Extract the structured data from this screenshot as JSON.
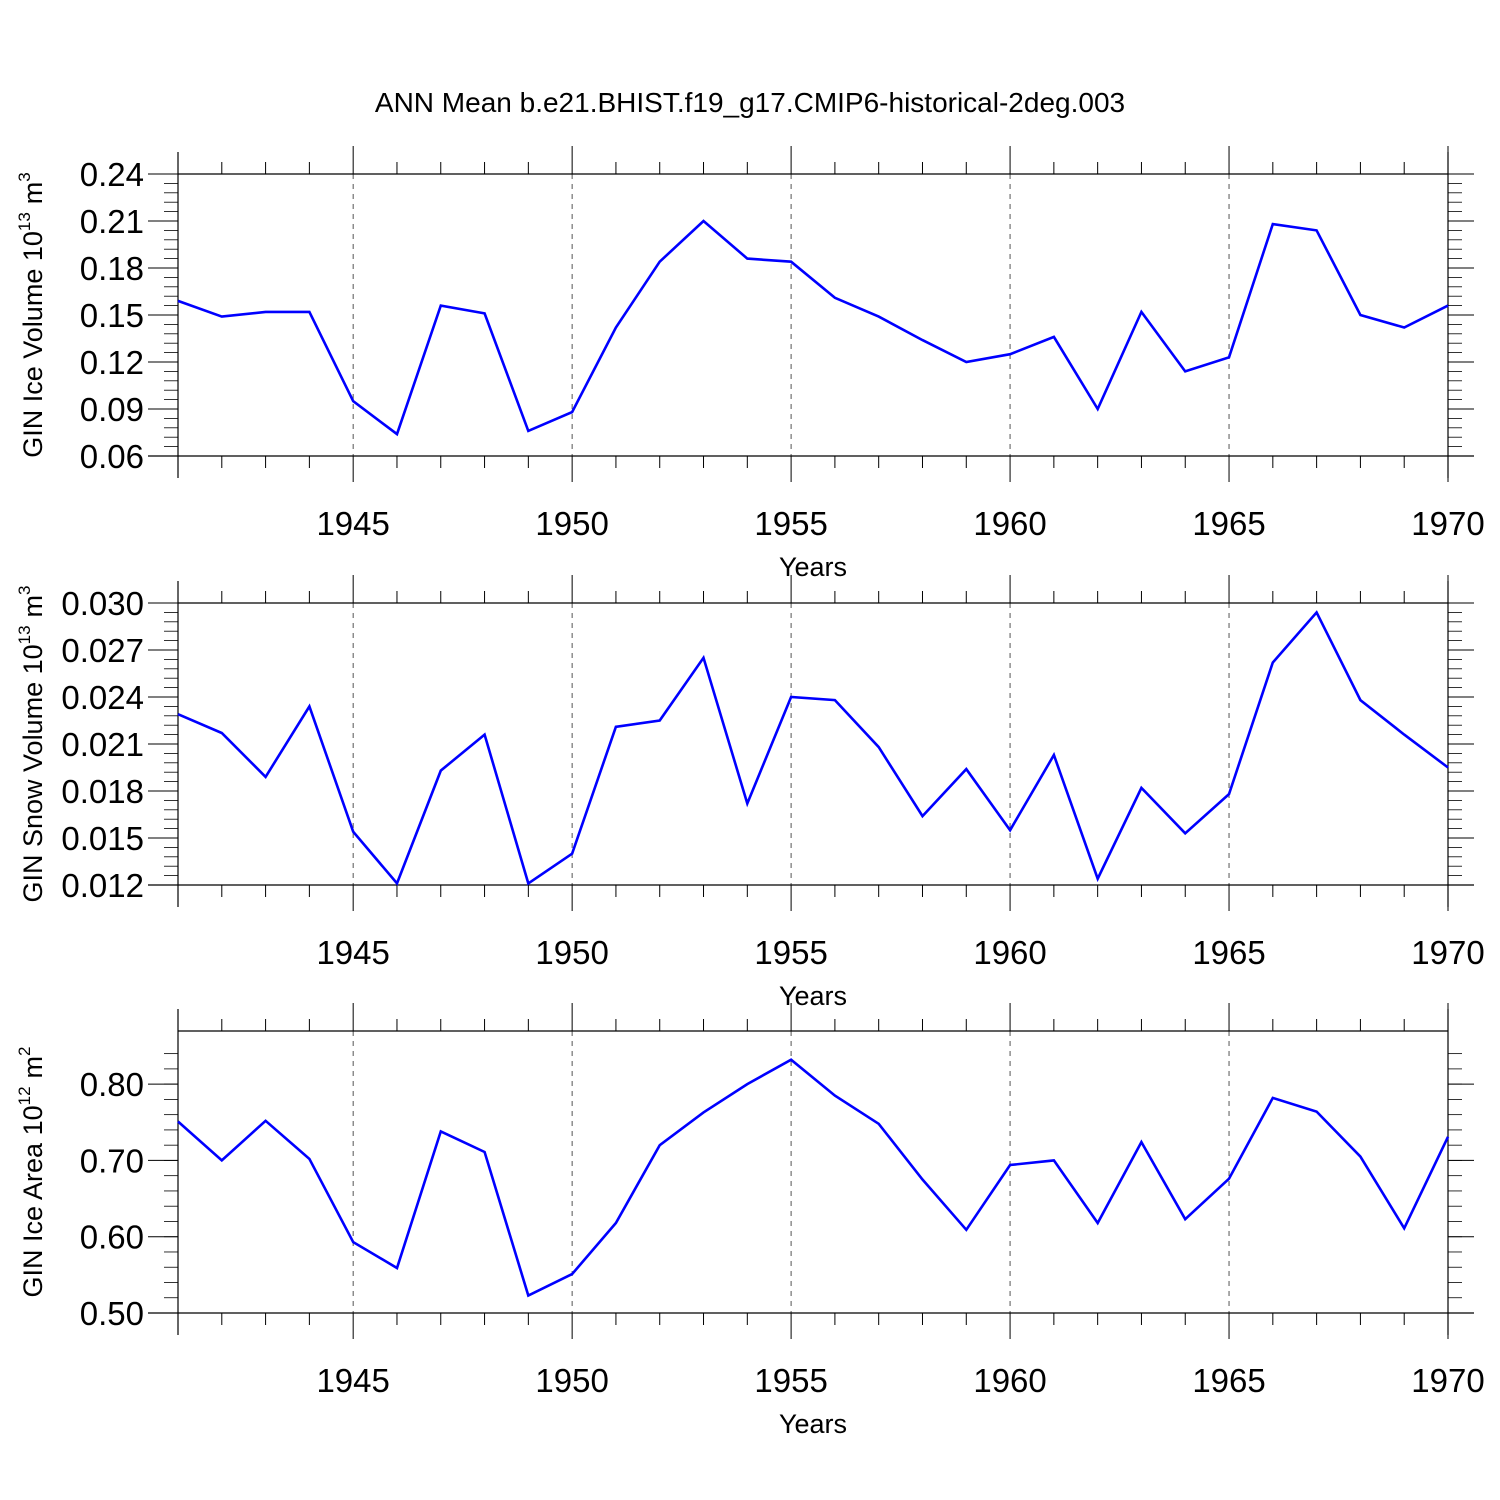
{
  "title": "ANN Mean b.e21.BHIST.f19_g17.CMIP6-historical-2deg.003",
  "chart_data": [
    {
      "type": "line",
      "ylabel": "GIN Ice Volume",
      "ylabel_unit": "10",
      "ylabel_exp": "13",
      "ylabel_suffix": "m",
      "ylabel_suffix_exp": "3",
      "xlabel": "Years",
      "xlim": [
        1941,
        1970
      ],
      "ylim": [
        0.06,
        0.24
      ],
      "yticks": [
        "0.06",
        "0.09",
        "0.12",
        "0.15",
        "0.18",
        "0.21",
        "0.24"
      ],
      "xticks": [
        "1945",
        "1950",
        "1955",
        "1960",
        "1965",
        "1970"
      ],
      "line_color": "#0000ff",
      "x": [
        1941,
        1942,
        1943,
        1944,
        1945,
        1946,
        1947,
        1948,
        1949,
        1950,
        1951,
        1952,
        1953,
        1954,
        1955,
        1956,
        1957,
        1958,
        1959,
        1960,
        1961,
        1962,
        1963,
        1964,
        1965,
        1966,
        1967,
        1968,
        1969,
        1970
      ],
      "values": [
        0.159,
        0.149,
        0.152,
        0.152,
        0.095,
        0.074,
        0.156,
        0.151,
        0.076,
        0.088,
        0.142,
        0.184,
        0.21,
        0.186,
        0.184,
        0.161,
        0.149,
        0.134,
        0.12,
        0.125,
        0.136,
        0.09,
        0.152,
        0.114,
        0.123,
        0.208,
        0.204,
        0.15,
        0.142,
        0.156
      ]
    },
    {
      "type": "line",
      "ylabel": "GIN Snow Volume",
      "ylabel_unit": "10",
      "ylabel_exp": "13",
      "ylabel_suffix": "m",
      "ylabel_suffix_exp": "3",
      "xlabel": "Years",
      "xlim": [
        1941,
        1970
      ],
      "ylim": [
        0.012,
        0.03
      ],
      "yticks": [
        "0.012",
        "0.015",
        "0.018",
        "0.021",
        "0.024",
        "0.027",
        "0.030"
      ],
      "xticks": [
        "1945",
        "1950",
        "1955",
        "1960",
        "1965",
        "1970"
      ],
      "line_color": "#0000ff",
      "x": [
        1941,
        1942,
        1943,
        1944,
        1945,
        1946,
        1947,
        1948,
        1949,
        1950,
        1951,
        1952,
        1953,
        1954,
        1955,
        1956,
        1957,
        1958,
        1959,
        1960,
        1961,
        1962,
        1963,
        1964,
        1965,
        1966,
        1967,
        1968,
        1969,
        1970
      ],
      "values": [
        0.0229,
        0.0217,
        0.0189,
        0.0234,
        0.0154,
        0.0121,
        0.0193,
        0.0216,
        0.0121,
        0.014,
        0.0221,
        0.0225,
        0.0265,
        0.0172,
        0.024,
        0.0238,
        0.0208,
        0.0164,
        0.0194,
        0.0155,
        0.0203,
        0.0124,
        0.0182,
        0.0153,
        0.0178,
        0.0262,
        0.0294,
        0.0238,
        0.0216,
        0.0195
      ]
    },
    {
      "type": "line",
      "ylabel": "GIN Ice Area",
      "ylabel_unit": "10",
      "ylabel_exp": "12",
      "ylabel_suffix": "m",
      "ylabel_suffix_exp": "2",
      "xlabel": "Years",
      "xlim": [
        1941,
        1970
      ],
      "ylim": [
        0.5,
        0.85
      ],
      "yticks": [
        "0.50",
        "0.60",
        "0.70",
        "0.80"
      ],
      "xticks": [
        "1945",
        "1950",
        "1955",
        "1960",
        "1965",
        "1970"
      ],
      "line_color": "#0000ff",
      "x": [
        1941,
        1942,
        1943,
        1944,
        1945,
        1946,
        1947,
        1948,
        1949,
        1950,
        1951,
        1952,
        1953,
        1954,
        1955,
        1956,
        1957,
        1958,
        1959,
        1960,
        1961,
        1962,
        1963,
        1964,
        1965,
        1966,
        1967,
        1968,
        1969,
        1970
      ],
      "values": [
        0.751,
        0.7,
        0.752,
        0.702,
        0.593,
        0.559,
        0.738,
        0.711,
        0.523,
        0.551,
        0.618,
        0.72,
        0.763,
        0.8,
        0.832,
        0.785,
        0.748,
        0.675,
        0.609,
        0.694,
        0.7,
        0.618,
        0.724,
        0.623,
        0.676,
        0.782,
        0.764,
        0.705,
        0.611,
        0.731
      ]
    }
  ]
}
